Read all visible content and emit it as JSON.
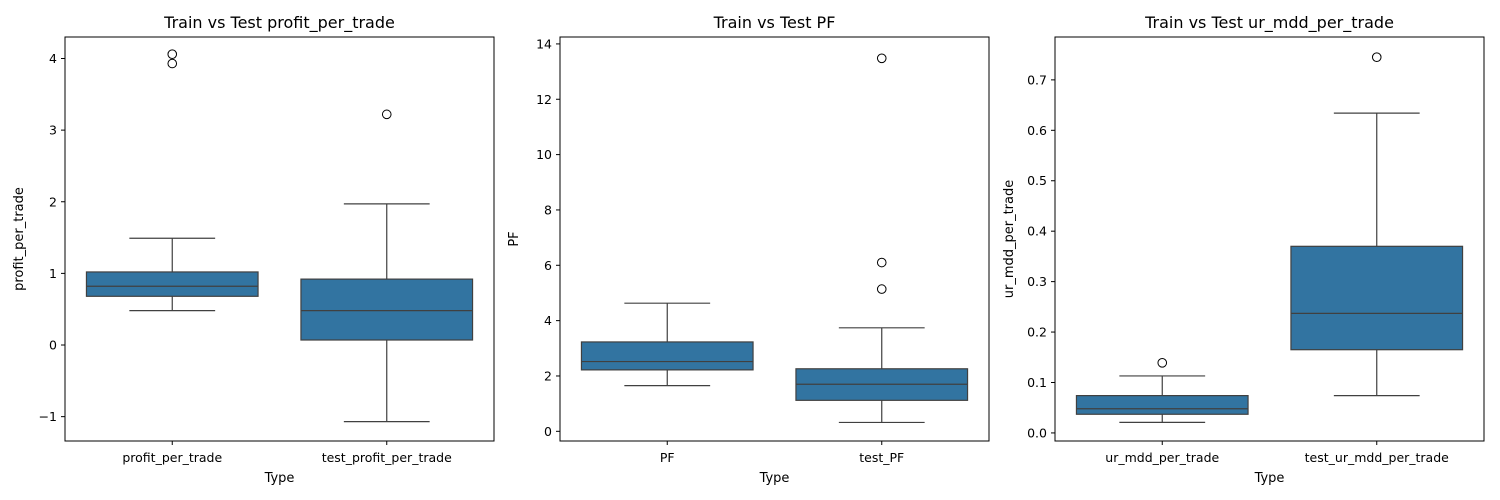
{
  "chart_data": [
    {
      "type": "box",
      "title": "Train vs Test profit_per_trade",
      "xlabel": "Type",
      "ylabel": "profit_per_trade",
      "ylim": [
        -1.34,
        4.3
      ],
      "yticks": [
        -1,
        0,
        1,
        2,
        3,
        4
      ],
      "ytick_labels": [
        "−1",
        "0",
        "1",
        "2",
        "3",
        "4"
      ],
      "box_color": "#3274a1",
      "categories": [
        "profit_per_trade",
        "test_profit_per_trade"
      ],
      "boxes": [
        {
          "category": "profit_per_trade",
          "whislo": 0.48,
          "q1": 0.68,
          "med": 0.82,
          "q3": 1.02,
          "whishi": 1.49,
          "fliers": [
            4.06,
            3.93
          ]
        },
        {
          "category": "test_profit_per_trade",
          "whislo": -1.07,
          "q1": 0.07,
          "med": 0.48,
          "q3": 0.92,
          "whishi": 1.97,
          "fliers": [
            3.22
          ]
        }
      ]
    },
    {
      "type": "box",
      "title": "Train vs Test PF",
      "xlabel": "Type",
      "ylabel": "PF",
      "ylim": [
        -0.35,
        14.25
      ],
      "yticks": [
        0,
        2,
        4,
        6,
        8,
        10,
        12,
        14
      ],
      "ytick_labels": [
        "0",
        "2",
        "4",
        "6",
        "8",
        "10",
        "12",
        "14"
      ],
      "box_color": "#3274a1",
      "categories": [
        "PF",
        "test_PF"
      ],
      "boxes": [
        {
          "category": "PF",
          "whislo": 1.65,
          "q1": 2.22,
          "med": 2.52,
          "q3": 3.23,
          "whishi": 4.63,
          "fliers": []
        },
        {
          "category": "test_PF",
          "whislo": 0.32,
          "q1": 1.12,
          "med": 1.7,
          "q3": 2.26,
          "whishi": 3.74,
          "fliers": [
            13.48,
            6.1,
            5.14
          ]
        }
      ]
    },
    {
      "type": "box",
      "title": "Train vs Test ur_mdd_per_trade",
      "xlabel": "Type",
      "ylabel": "ur_mdd_per_trade",
      "ylim": [
        -0.016,
        0.785
      ],
      "yticks": [
        0.0,
        0.1,
        0.2,
        0.3,
        0.4,
        0.5,
        0.6,
        0.7
      ],
      "ytick_labels": [
        "0.0",
        "0.1",
        "0.2",
        "0.3",
        "0.4",
        "0.5",
        "0.6",
        "0.7"
      ],
      "box_color": "#3274a1",
      "categories": [
        "ur_mdd_per_trade",
        "test_ur_mdd_per_trade"
      ],
      "boxes": [
        {
          "category": "ur_mdd_per_trade",
          "whislo": 0.021,
          "q1": 0.037,
          "med": 0.048,
          "q3": 0.074,
          "whishi": 0.113,
          "fliers": [
            0.139
          ]
        },
        {
          "category": "test_ur_mdd_per_trade",
          "whislo": 0.074,
          "q1": 0.165,
          "med": 0.237,
          "q3": 0.37,
          "whishi": 0.634,
          "fliers": [
            0.745
          ]
        }
      ]
    }
  ]
}
